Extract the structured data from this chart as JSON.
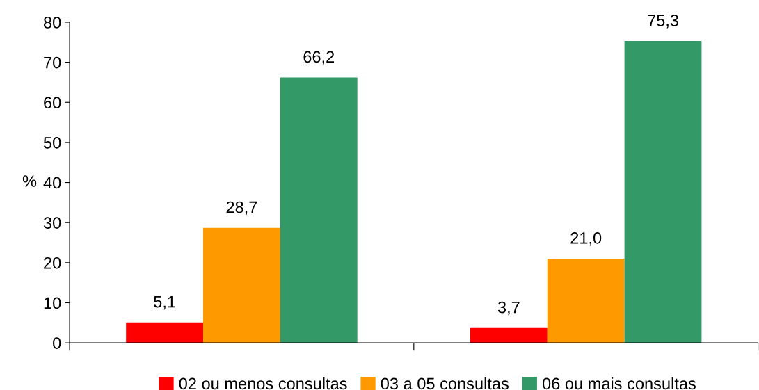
{
  "chart_data": {
    "type": "bar",
    "categories": [
      null,
      null
    ],
    "ylabel": "%",
    "ylim": [
      0,
      80
    ],
    "yticks": [
      0,
      10,
      20,
      30,
      40,
      50,
      60,
      70,
      80
    ],
    "grid": false,
    "legend": "bottom",
    "series": [
      {
        "name": "02 ou menos consultas",
        "color": "#ff0000",
        "values": [
          5.1,
          3.7
        ],
        "value_labels": [
          "5,1",
          "3,7"
        ]
      },
      {
        "name": "03 a 05 consultas",
        "color": "#ff9900",
        "values": [
          28.7,
          21.0
        ],
        "value_labels": [
          "28,7",
          "21,0"
        ]
      },
      {
        "name": "06 ou mais consultas",
        "color": "#339966",
        "values": [
          66.2,
          75.3
        ],
        "value_labels": [
          "66,2",
          "75,3"
        ]
      }
    ]
  }
}
